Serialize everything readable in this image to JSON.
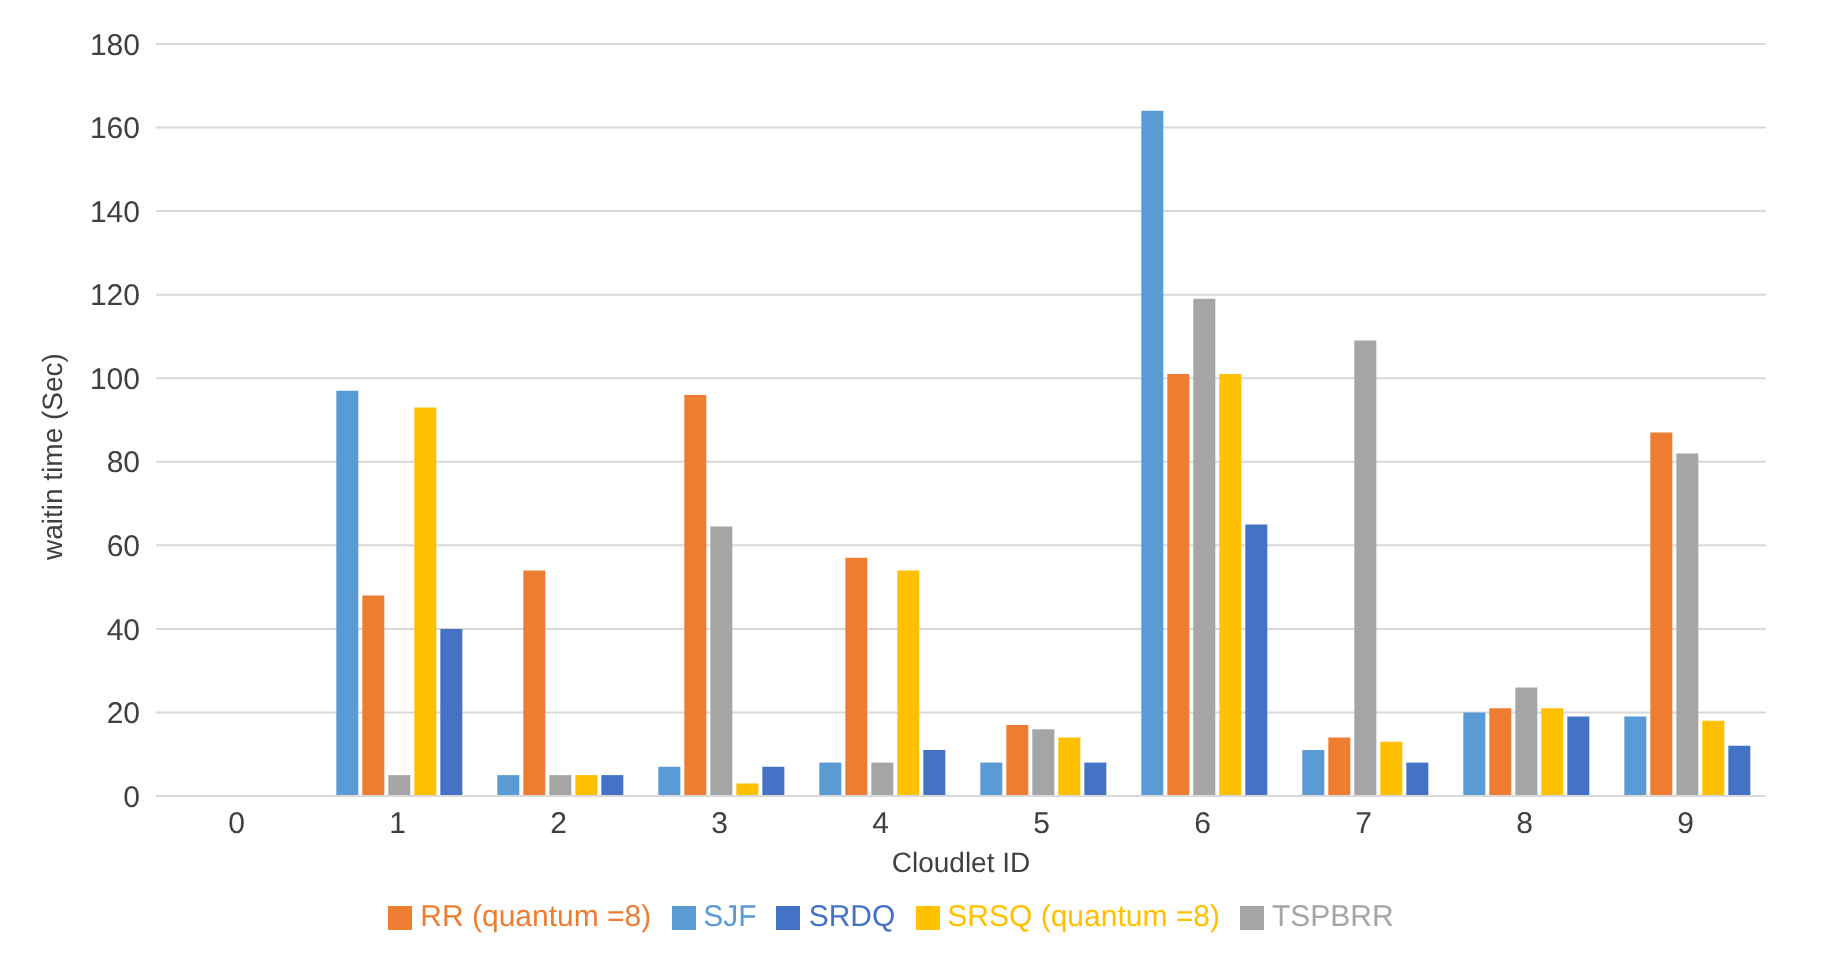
{
  "chart_data": {
    "type": "bar",
    "xlabel": "Cloudlet ID",
    "ylabel": "waitin time (Sec)",
    "categories": [
      "0",
      "1",
      "2",
      "3",
      "4",
      "5",
      "6",
      "7",
      "8",
      "9"
    ],
    "series": [
      {
        "name": "SJF",
        "color": "#5b9bd5",
        "values": [
          0,
          97,
          5,
          7,
          8,
          8,
          164,
          11,
          20,
          19
        ]
      },
      {
        "name": "RR (quantum =8)",
        "color": "#ed7d31",
        "values": [
          0,
          48,
          54,
          96,
          57,
          17,
          101,
          14,
          21,
          87
        ]
      },
      {
        "name": "TSPBRR",
        "color": "#a5a5a5",
        "values": [
          0,
          5,
          5,
          64.5,
          8,
          16,
          119,
          109,
          26,
          82
        ]
      },
      {
        "name": "SRSQ (quantum =8)",
        "color": "#ffc000",
        "values": [
          0,
          93,
          5,
          3,
          54,
          14,
          101,
          13,
          21,
          18
        ]
      },
      {
        "name": "SRDQ",
        "color": "#4472c4",
        "values": [
          0,
          40,
          5,
          7,
          11,
          8,
          65,
          8,
          19,
          12
        ]
      }
    ],
    "ylim": [
      0,
      180
    ],
    "yticks": [
      0,
      20,
      40,
      60,
      80,
      100,
      120,
      140,
      160,
      180
    ],
    "grid": "y",
    "legend": "bottom"
  }
}
